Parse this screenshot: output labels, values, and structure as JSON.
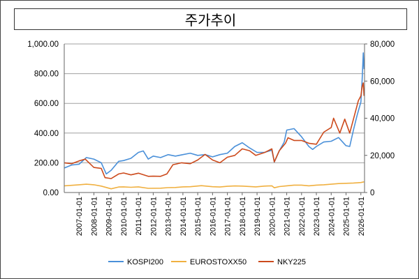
{
  "chart_data": {
    "type": "line",
    "title": "주가추이",
    "xlabel": "",
    "ylabel": "",
    "x_ticks": [
      "2007-01-01",
      "2008-01-01",
      "2009-01-01",
      "2010-01-01",
      "2011-01-01",
      "2012-01-01",
      "2013-01-01",
      "2014-01-01",
      "2015-01-01",
      "2016-01-01",
      "2017-01-01",
      "2018-01-01",
      "2019-01-01",
      "2020-01-01",
      "2021-01-01",
      "2022-01-01",
      "2023-01-01",
      "2024-01-01",
      "2025-01-01",
      "2026-01-01"
    ],
    "xlim": [
      "2006-01-01",
      "2026-04-01"
    ],
    "ylim_left": [
      0,
      1000
    ],
    "ylim_right": [
      0,
      80000
    ],
    "y_ticks_left": [
      "0.00",
      "200.00",
      "400.00",
      "600.00",
      "800.00",
      "1,000.00"
    ],
    "y_ticks_right": [
      "0",
      "20,000",
      "40,000",
      "60,000",
      "80,000"
    ],
    "grid": "horizontal",
    "legend_position": "bottom",
    "colors": {
      "KOSPI200": "#4a90d9",
      "EUROSTOXX50": "#f0b040",
      "NKY225": "#cc4a1c"
    },
    "series": [
      {
        "name": "KOSPI200",
        "axis": "left",
        "points": [
          [
            "2006-01-01",
            165
          ],
          [
            "2006-07-01",
            185
          ],
          [
            "2007-01-01",
            190
          ],
          [
            "2007-07-01",
            235
          ],
          [
            "2008-01-01",
            225
          ],
          [
            "2008-07-01",
            200
          ],
          [
            "2008-11-01",
            125
          ],
          [
            "2009-03-01",
            150
          ],
          [
            "2009-09-01",
            210
          ],
          [
            "2010-01-01",
            215
          ],
          [
            "2010-07-01",
            230
          ],
          [
            "2011-01-01",
            270
          ],
          [
            "2011-05-01",
            280
          ],
          [
            "2011-09-01",
            225
          ],
          [
            "2012-01-01",
            245
          ],
          [
            "2012-07-01",
            235
          ],
          [
            "2013-01-01",
            255
          ],
          [
            "2013-07-01",
            245
          ],
          [
            "2014-01-01",
            255
          ],
          [
            "2014-07-01",
            265
          ],
          [
            "2015-01-01",
            250
          ],
          [
            "2015-07-01",
            255
          ],
          [
            "2016-01-01",
            240
          ],
          [
            "2016-07-01",
            255
          ],
          [
            "2017-01-01",
            265
          ],
          [
            "2017-07-01",
            310
          ],
          [
            "2018-01-01",
            335
          ],
          [
            "2018-07-01",
            300
          ],
          [
            "2019-01-01",
            270
          ],
          [
            "2019-07-01",
            270
          ],
          [
            "2020-01-01",
            285
          ],
          [
            "2020-03-01",
            205
          ],
          [
            "2020-07-01",
            280
          ],
          [
            "2020-11-01",
            340
          ],
          [
            "2021-01-01",
            420
          ],
          [
            "2021-07-01",
            430
          ],
          [
            "2022-01-01",
            375
          ],
          [
            "2022-07-01",
            310
          ],
          [
            "2022-10-01",
            290
          ],
          [
            "2023-01-01",
            310
          ],
          [
            "2023-07-01",
            340
          ],
          [
            "2024-01-01",
            345
          ],
          [
            "2024-07-01",
            370
          ],
          [
            "2025-01-01",
            315
          ],
          [
            "2025-04-01",
            310
          ],
          [
            "2025-07-01",
            420
          ],
          [
            "2025-10-01",
            520
          ],
          [
            "2026-01-01",
            610
          ],
          [
            "2026-02-01",
            760
          ],
          [
            "2026-03-01",
            940
          ],
          [
            "2026-03-20",
            830
          ]
        ]
      },
      {
        "name": "EUROSTOXX50",
        "axis": "left",
        "points": [
          [
            "2006-01-01",
            45
          ],
          [
            "2007-01-01",
            52
          ],
          [
            "2007-07-01",
            56
          ],
          [
            "2008-01-01",
            52
          ],
          [
            "2008-07-01",
            43
          ],
          [
            "2009-03-01",
            25
          ],
          [
            "2009-09-01",
            37
          ],
          [
            "2010-01-01",
            38
          ],
          [
            "2010-07-01",
            35
          ],
          [
            "2011-01-01",
            38
          ],
          [
            "2011-09-01",
            28
          ],
          [
            "2012-07-01",
            29
          ],
          [
            "2013-01-01",
            33
          ],
          [
            "2013-07-01",
            34
          ],
          [
            "2014-01-01",
            38
          ],
          [
            "2014-07-01",
            39
          ],
          [
            "2015-04-01",
            46
          ],
          [
            "2016-01-01",
            39
          ],
          [
            "2016-07-01",
            37
          ],
          [
            "2017-01-01",
            42
          ],
          [
            "2017-07-01",
            44
          ],
          [
            "2018-01-01",
            43
          ],
          [
            "2018-12-01",
            38
          ],
          [
            "2019-07-01",
            43
          ],
          [
            "2020-01-01",
            45
          ],
          [
            "2020-03-01",
            32
          ],
          [
            "2020-07-01",
            40
          ],
          [
            "2021-01-01",
            45
          ],
          [
            "2021-07-01",
            50
          ],
          [
            "2022-01-01",
            50
          ],
          [
            "2022-07-01",
            45
          ],
          [
            "2023-01-01",
            50
          ],
          [
            "2023-07-01",
            52
          ],
          [
            "2024-01-01",
            56
          ],
          [
            "2024-07-01",
            60
          ],
          [
            "2025-01-01",
            62
          ],
          [
            "2025-07-01",
            64
          ],
          [
            "2026-01-01",
            67
          ],
          [
            "2026-03-20",
            72
          ]
        ]
      },
      {
        "name": "NKY225",
        "axis": "right",
        "points": [
          [
            "2006-01-01",
            16000
          ],
          [
            "2006-07-01",
            15500
          ],
          [
            "2007-01-01",
            17000
          ],
          [
            "2007-06-01",
            18000
          ],
          [
            "2008-01-01",
            13500
          ],
          [
            "2008-07-01",
            13000
          ],
          [
            "2008-10-01",
            8000
          ],
          [
            "2009-03-01",
            7500
          ],
          [
            "2009-09-01",
            10000
          ],
          [
            "2010-01-01",
            10500
          ],
          [
            "2010-07-01",
            9500
          ],
          [
            "2011-01-01",
            10400
          ],
          [
            "2011-09-01",
            8700
          ],
          [
            "2012-01-01",
            8800
          ],
          [
            "2012-07-01",
            8700
          ],
          [
            "2012-12-01",
            10000
          ],
          [
            "2013-05-01",
            15000
          ],
          [
            "2013-12-01",
            16000
          ],
          [
            "2014-07-01",
            15500
          ],
          [
            "2015-01-01",
            17500
          ],
          [
            "2015-07-01",
            20500
          ],
          [
            "2016-01-01",
            17500
          ],
          [
            "2016-07-01",
            16000
          ],
          [
            "2017-01-01",
            19000
          ],
          [
            "2017-07-01",
            20000
          ],
          [
            "2018-01-01",
            23500
          ],
          [
            "2018-07-01",
            22500
          ],
          [
            "2018-12-01",
            20000
          ],
          [
            "2019-07-01",
            21500
          ],
          [
            "2020-01-01",
            23500
          ],
          [
            "2020-03-01",
            16500
          ],
          [
            "2020-07-01",
            22500
          ],
          [
            "2020-12-01",
            26500
          ],
          [
            "2021-02-01",
            29500
          ],
          [
            "2021-07-01",
            28000
          ],
          [
            "2022-01-01",
            28000
          ],
          [
            "2022-07-01",
            26500
          ],
          [
            "2023-01-01",
            26000
          ],
          [
            "2023-07-01",
            32500
          ],
          [
            "2024-01-01",
            35000
          ],
          [
            "2024-03-01",
            40000
          ],
          [
            "2024-08-01",
            32000
          ],
          [
            "2024-12-01",
            39500
          ],
          [
            "2025-04-01",
            32000
          ],
          [
            "2025-08-01",
            42000
          ],
          [
            "2025-11-01",
            49500
          ],
          [
            "2026-01-01",
            52000
          ],
          [
            "2026-02-01",
            57000
          ],
          [
            "2026-03-01",
            59000
          ],
          [
            "2026-03-20",
            52000
          ]
        ]
      }
    ]
  }
}
